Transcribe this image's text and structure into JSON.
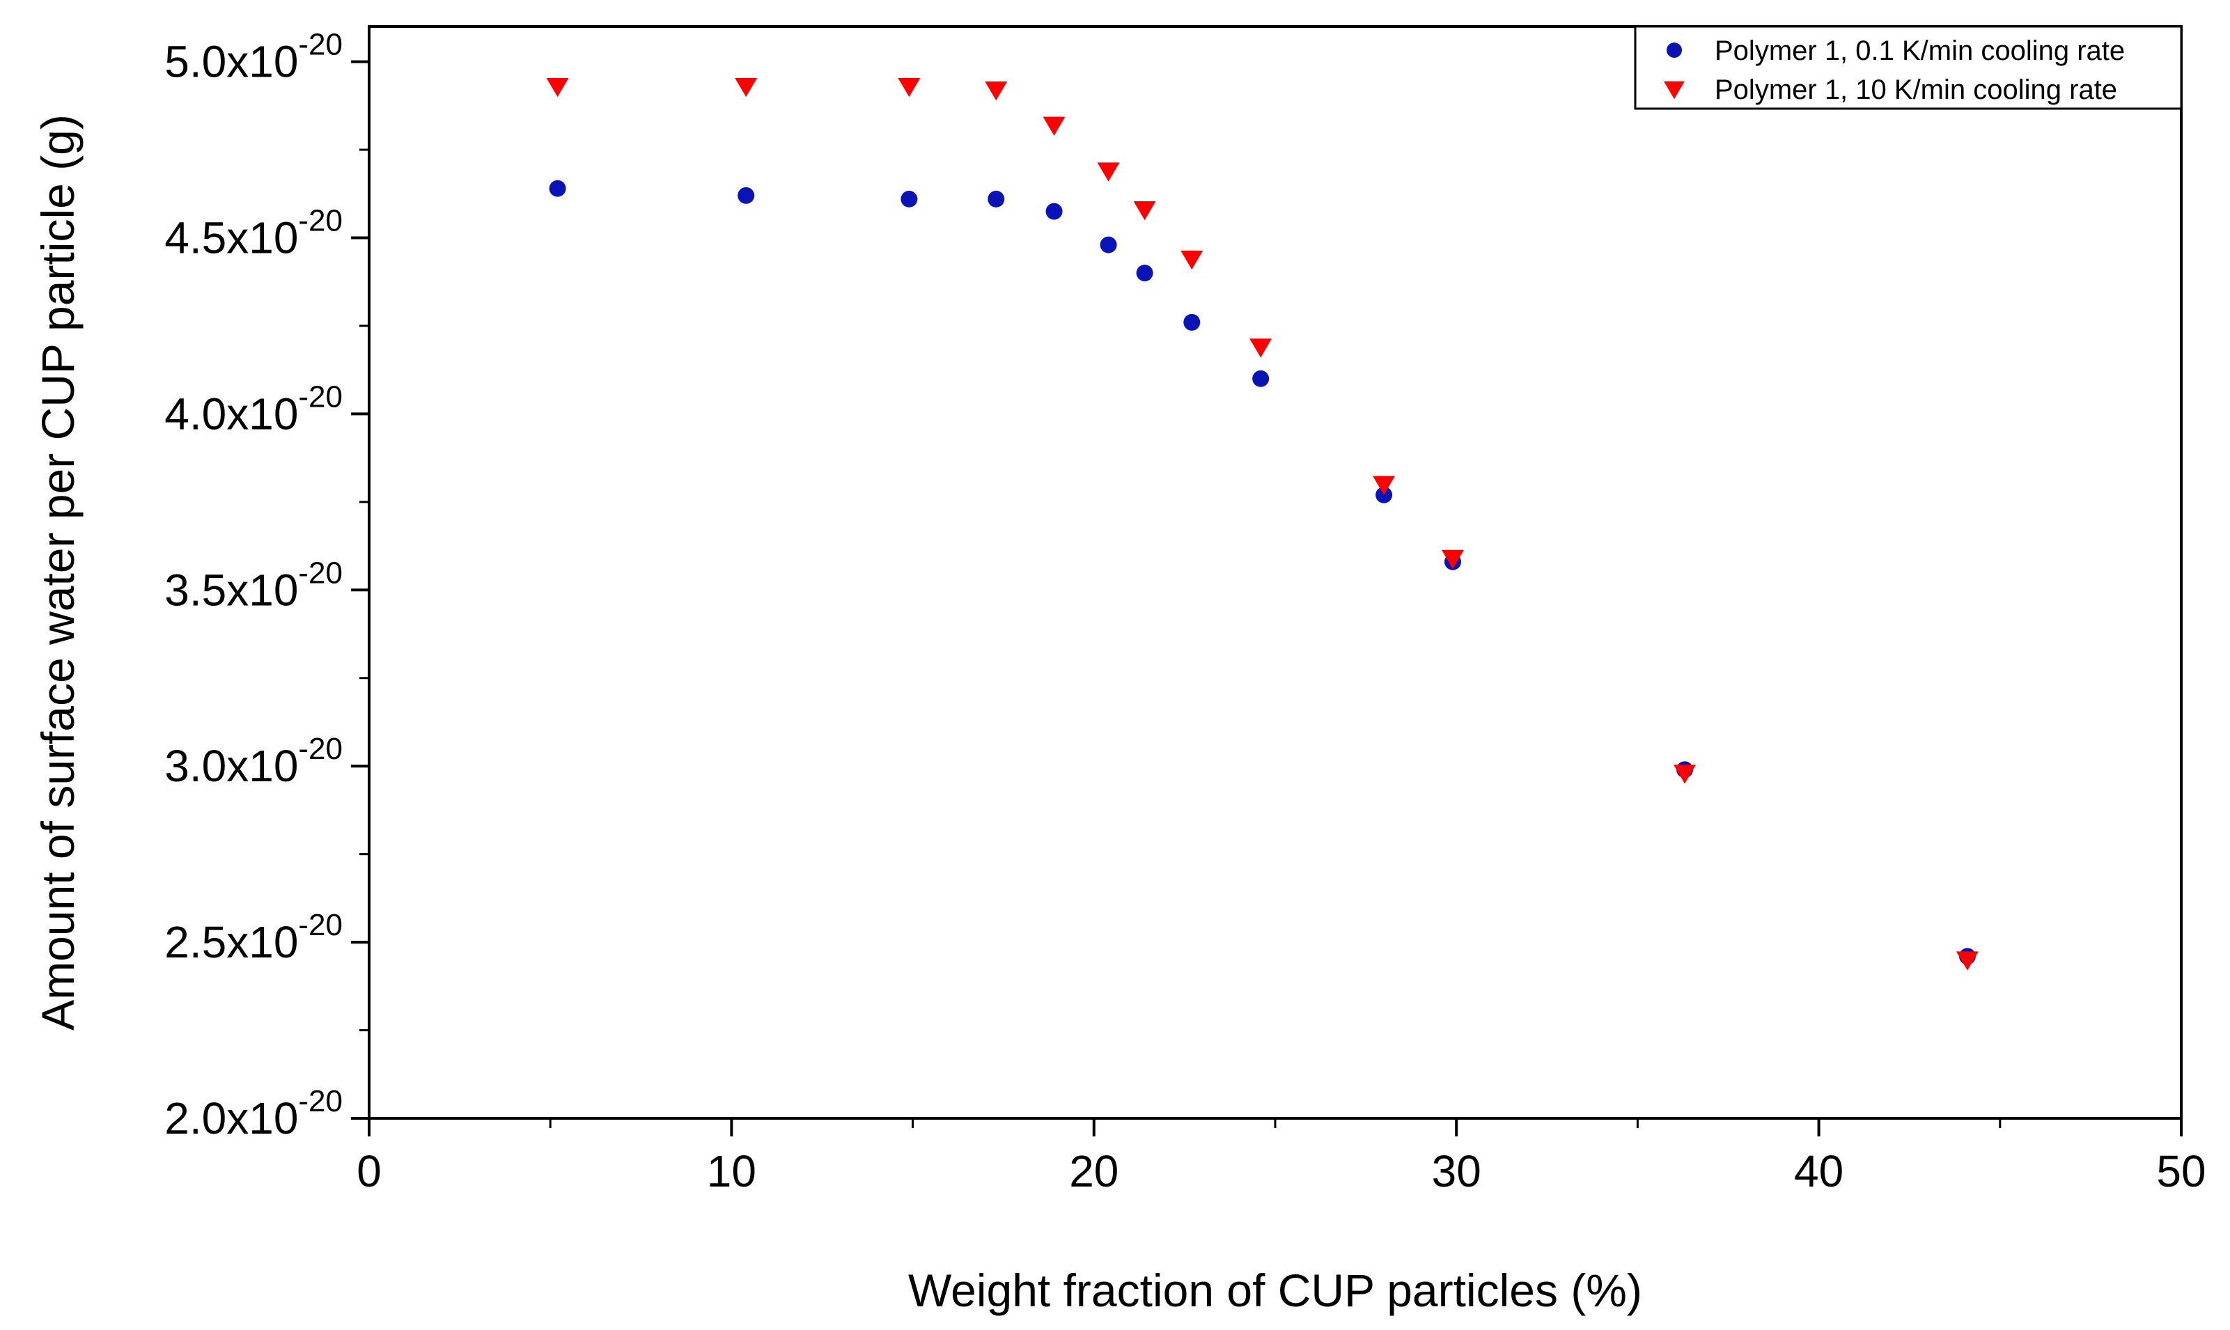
{
  "chart_data": {
    "type": "scatter",
    "title": "",
    "xlabel": "Weight fraction of CUP particles (%)",
    "ylabel": "Amount of surface water per CUP particle (g)",
    "xlim": [
      0,
      50
    ],
    "ylim": [
      2e-20,
      5.1e-20
    ],
    "x_ticks": [
      0,
      10,
      20,
      30,
      40,
      50
    ],
    "y_ticks": [
      {
        "value": 2e-20,
        "mantissa": "2.0x10",
        "exponent": "-20"
      },
      {
        "value": 2.5e-20,
        "mantissa": "2.5x10",
        "exponent": "-20"
      },
      {
        "value": 3e-20,
        "mantissa": "3.0x10",
        "exponent": "-20"
      },
      {
        "value": 3.5e-20,
        "mantissa": "3.5x10",
        "exponent": "-20"
      },
      {
        "value": 4e-20,
        "mantissa": "4.0x10",
        "exponent": "-20"
      },
      {
        "value": 4.5e-20,
        "mantissa": "4.5x10",
        "exponent": "-20"
      },
      {
        "value": 5e-20,
        "mantissa": "5.0x10",
        "exponent": "-20"
      }
    ],
    "grid": false,
    "legend_position": "top-right",
    "series": [
      {
        "name": "Polymer 1, 0.1 K/min cooling rate",
        "marker": "circle",
        "color": "#0a14b4",
        "points": [
          {
            "x": 5.2,
            "y": 4.64e-20
          },
          {
            "x": 10.4,
            "y": 4.62e-20
          },
          {
            "x": 14.9,
            "y": 4.61e-20
          },
          {
            "x": 17.3,
            "y": 4.61e-20
          },
          {
            "x": 18.9,
            "y": 4.575e-20
          },
          {
            "x": 20.4,
            "y": 4.48e-20
          },
          {
            "x": 21.4,
            "y": 4.4e-20
          },
          {
            "x": 22.7,
            "y": 4.26e-20
          },
          {
            "x": 24.6,
            "y": 4.1e-20
          },
          {
            "x": 28.0,
            "y": 3.77e-20
          },
          {
            "x": 29.9,
            "y": 3.58e-20
          },
          {
            "x": 36.3,
            "y": 2.99e-20
          },
          {
            "x": 44.1,
            "y": 2.46e-20
          }
        ]
      },
      {
        "name": "Polymer 1, 10 K/min cooling rate",
        "marker": "triangle-down",
        "color": "#ff0000",
        "points": [
          {
            "x": 5.2,
            "y": 4.93e-20
          },
          {
            "x": 10.4,
            "y": 4.93e-20
          },
          {
            "x": 14.9,
            "y": 4.93e-20
          },
          {
            "x": 17.3,
            "y": 4.92e-20
          },
          {
            "x": 18.9,
            "y": 4.82e-20
          },
          {
            "x": 20.4,
            "y": 4.69e-20
          },
          {
            "x": 21.4,
            "y": 4.58e-20
          },
          {
            "x": 22.7,
            "y": 4.44e-20
          },
          {
            "x": 24.6,
            "y": 4.19e-20
          },
          {
            "x": 28.0,
            "y": 3.8e-20
          },
          {
            "x": 29.9,
            "y": 3.59e-20
          },
          {
            "x": 36.3,
            "y": 2.98e-20
          },
          {
            "x": 44.1,
            "y": 2.45e-20
          }
        ]
      }
    ]
  }
}
